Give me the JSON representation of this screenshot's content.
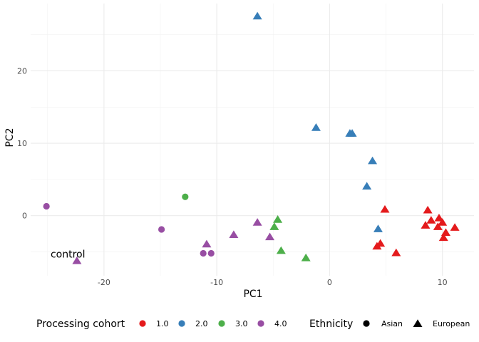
{
  "chart_data": {
    "type": "scatter",
    "xlabel": "PC1",
    "ylabel": "PC2",
    "xlim": [
      -26.5,
      12.8
    ],
    "ylim": [
      -8.3,
      29.3
    ],
    "x_ticks": [
      -20,
      -10,
      0,
      10
    ],
    "y_ticks": [
      0,
      10,
      20
    ],
    "x_tick_labels": [
      "-20",
      "-10",
      "0",
      "10"
    ],
    "y_tick_labels": [
      "0",
      "10",
      "20"
    ],
    "grid": true,
    "legend_position": "bottom",
    "color_legend": {
      "title": "Processing cohort",
      "entries": [
        {
          "label": "1.0",
          "color": "#e41a1c"
        },
        {
          "label": "2.0",
          "color": "#377eb8"
        },
        {
          "label": "3.0",
          "color": "#4daf4a"
        },
        {
          "label": "4.0",
          "color": "#984ea3"
        }
      ]
    },
    "shape_legend": {
      "title": "Ethnicity",
      "entries": [
        {
          "label": "Asian",
          "shape": "circle"
        },
        {
          "label": "European",
          "shape": "triangle"
        }
      ]
    },
    "annotations": [
      {
        "text": "control",
        "x": -23.2,
        "y": -5.3
      }
    ],
    "points": [
      {
        "x": -25.1,
        "y": 1.3,
        "cohort": "4.0",
        "ethnicity": "Asian"
      },
      {
        "x": -22.4,
        "y": -6.2,
        "cohort": "4.0",
        "ethnicity": "European"
      },
      {
        "x": -14.9,
        "y": -1.9,
        "cohort": "4.0",
        "ethnicity": "Asian"
      },
      {
        "x": -11.2,
        "y": -5.2,
        "cohort": "4.0",
        "ethnicity": "Asian"
      },
      {
        "x": -10.5,
        "y": -5.2,
        "cohort": "4.0",
        "ethnicity": "Asian"
      },
      {
        "x": -10.9,
        "y": -3.9,
        "cohort": "4.0",
        "ethnicity": "European"
      },
      {
        "x": -8.5,
        "y": -2.6,
        "cohort": "4.0",
        "ethnicity": "European"
      },
      {
        "x": -6.4,
        "y": -0.9,
        "cohort": "4.0",
        "ethnicity": "European"
      },
      {
        "x": -5.3,
        "y": -2.9,
        "cohort": "4.0",
        "ethnicity": "European"
      },
      {
        "x": -12.8,
        "y": 2.6,
        "cohort": "3.0",
        "ethnicity": "Asian"
      },
      {
        "x": -4.6,
        "y": -0.5,
        "cohort": "3.0",
        "ethnicity": "European"
      },
      {
        "x": -4.9,
        "y": -1.5,
        "cohort": "3.0",
        "ethnicity": "European"
      },
      {
        "x": -4.3,
        "y": -4.8,
        "cohort": "3.0",
        "ethnicity": "European"
      },
      {
        "x": -2.1,
        "y": -5.8,
        "cohort": "3.0",
        "ethnicity": "European"
      },
      {
        "x": -6.4,
        "y": 27.6,
        "cohort": "2.0",
        "ethnicity": "European"
      },
      {
        "x": -1.2,
        "y": 12.2,
        "cohort": "2.0",
        "ethnicity": "European"
      },
      {
        "x": 1.8,
        "y": 11.4,
        "cohort": "2.0",
        "ethnicity": "European"
      },
      {
        "x": 2.0,
        "y": 11.4,
        "cohort": "2.0",
        "ethnicity": "European"
      },
      {
        "x": 3.8,
        "y": 7.6,
        "cohort": "2.0",
        "ethnicity": "European"
      },
      {
        "x": 3.3,
        "y": 4.1,
        "cohort": "2.0",
        "ethnicity": "European"
      },
      {
        "x": 4.3,
        "y": -1.8,
        "cohort": "2.0",
        "ethnicity": "European"
      },
      {
        "x": 4.9,
        "y": 0.9,
        "cohort": "1.0",
        "ethnicity": "European"
      },
      {
        "x": 4.2,
        "y": -4.2,
        "cohort": "1.0",
        "ethnicity": "European"
      },
      {
        "x": 4.5,
        "y": -3.8,
        "cohort": "1.0",
        "ethnicity": "European"
      },
      {
        "x": 5.9,
        "y": -5.1,
        "cohort": "1.0",
        "ethnicity": "European"
      },
      {
        "x": 8.7,
        "y": 0.8,
        "cohort": "1.0",
        "ethnicity": "European"
      },
      {
        "x": 8.5,
        "y": -1.3,
        "cohort": "1.0",
        "ethnicity": "European"
      },
      {
        "x": 9.0,
        "y": -0.6,
        "cohort": "1.0",
        "ethnicity": "European"
      },
      {
        "x": 9.7,
        "y": -0.3,
        "cohort": "1.0",
        "ethnicity": "European"
      },
      {
        "x": 9.6,
        "y": -1.5,
        "cohort": "1.0",
        "ethnicity": "European"
      },
      {
        "x": 10.0,
        "y": -0.9,
        "cohort": "1.0",
        "ethnicity": "European"
      },
      {
        "x": 10.3,
        "y": -2.3,
        "cohort": "1.0",
        "ethnicity": "European"
      },
      {
        "x": 10.1,
        "y": -3.0,
        "cohort": "1.0",
        "ethnicity": "European"
      },
      {
        "x": 11.1,
        "y": -1.6,
        "cohort": "1.0",
        "ethnicity": "European"
      }
    ]
  }
}
